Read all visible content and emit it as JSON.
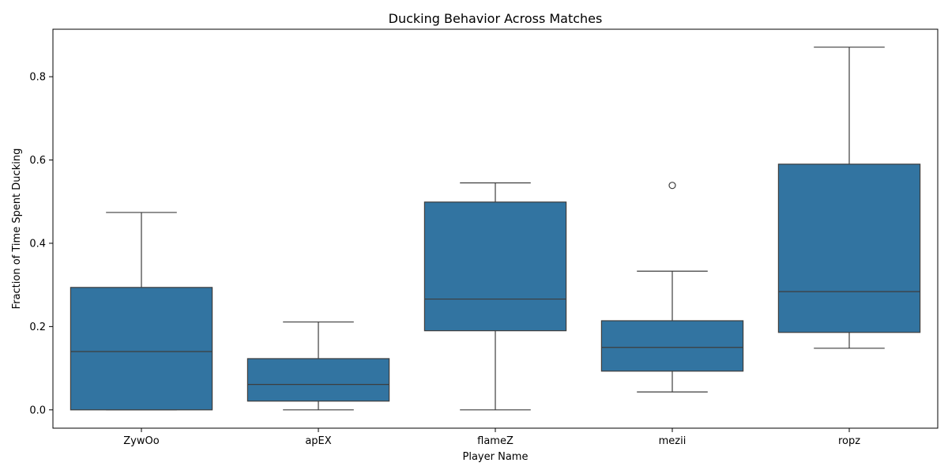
{
  "chart_data": {
    "type": "box",
    "title": "Ducking Behavior Across Matches",
    "xlabel": "Player Name",
    "ylabel": "Fraction of Time Spent Ducking",
    "ylim": [
      -0.044,
      0.914
    ],
    "yticks": [
      0.0,
      0.2,
      0.4,
      0.6,
      0.8
    ],
    "ytick_labels": [
      "0.0",
      "0.2",
      "0.4",
      "0.6",
      "0.8"
    ],
    "categories": [
      "ZywOo",
      "apEX",
      "flameZ",
      "mezii",
      "ropz"
    ],
    "boxes": [
      {
        "name": "ZywOo",
        "whisker_low": 0.0,
        "q1": 0.0,
        "median": 0.14,
        "q3": 0.294,
        "whisker_high": 0.474,
        "outliers": []
      },
      {
        "name": "apEX",
        "whisker_low": 0.0,
        "q1": 0.021,
        "median": 0.061,
        "q3": 0.123,
        "whisker_high": 0.211,
        "outliers": []
      },
      {
        "name": "flameZ",
        "whisker_low": 0.0,
        "q1": 0.19,
        "median": 0.266,
        "q3": 0.499,
        "whisker_high": 0.545,
        "outliers": []
      },
      {
        "name": "mezii",
        "whisker_low": 0.043,
        "q1": 0.093,
        "median": 0.15,
        "q3": 0.214,
        "whisker_high": 0.333,
        "outliers": [
          0.539
        ]
      },
      {
        "name": "ropz",
        "whisker_low": 0.148,
        "q1": 0.186,
        "median": 0.284,
        "q3": 0.59,
        "whisker_high": 0.871,
        "outliers": []
      }
    ],
    "colors": {
      "box_fill": "#3274a1",
      "line": "#3d3d3d",
      "axis": "#000000"
    },
    "grid": false,
    "legend": "none"
  }
}
